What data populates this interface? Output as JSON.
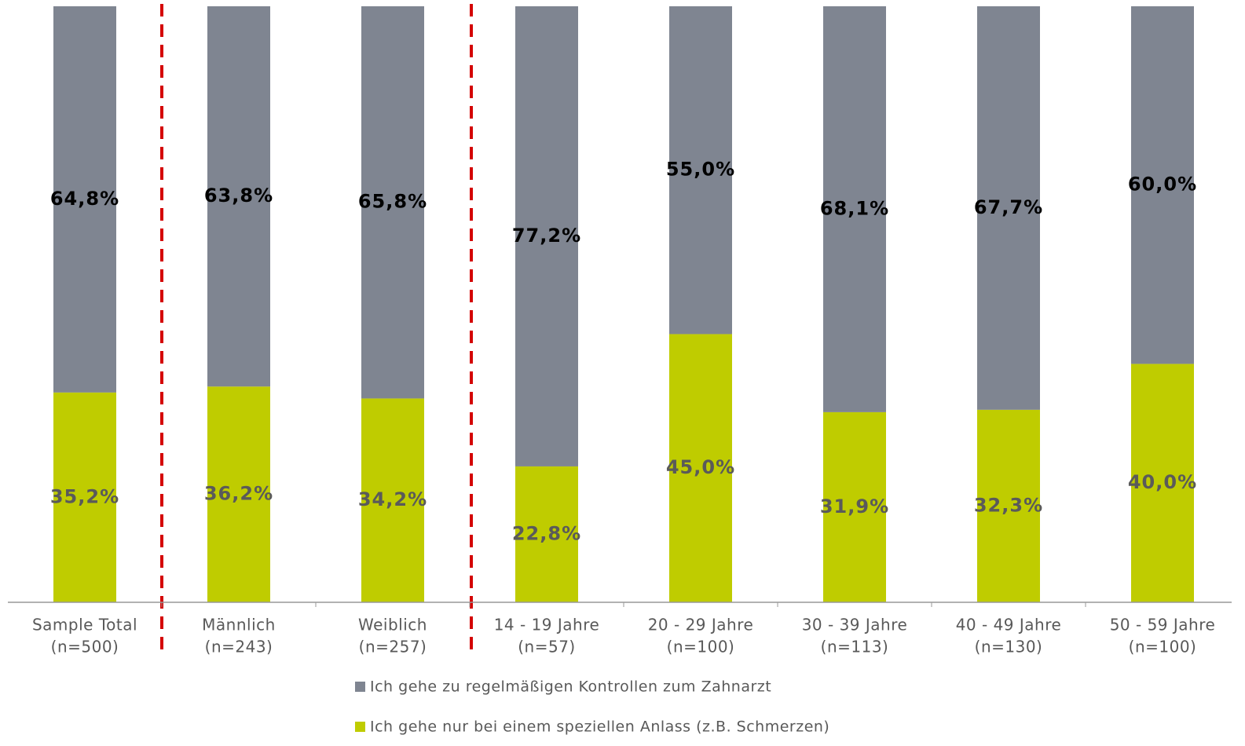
{
  "chart_data": {
    "type": "stacked_bar",
    "categories": [
      [
        "Sample Total",
        "(n=500)"
      ],
      [
        "Männlich",
        "(n=243)"
      ],
      [
        "Weiblich",
        "(n=257)"
      ],
      [
        "14 - 19 Jahre",
        "(n=57)"
      ],
      [
        "20 - 29 Jahre",
        "(n=100)"
      ],
      [
        "30 - 39 Jahre",
        "(n=113)"
      ],
      [
        "40 - 49 Jahre",
        "(n=130)"
      ],
      [
        "50 - 59 Jahre",
        "(n=100)"
      ]
    ],
    "series": [
      {
        "name": "Ich gehe nur bei einem speziellen Anlass (z.B. Schmerzen)",
        "color": "#bfcc00",
        "label_color": "#5a5a5a",
        "values": [
          35.2,
          36.2,
          34.2,
          22.8,
          45.0,
          31.9,
          32.3,
          40.0
        ],
        "value_labels": [
          "35,2%",
          "36,2%",
          "34,2%",
          "22,8%",
          "45,0%",
          "31,9%",
          "32,3%",
          "40,0%"
        ]
      },
      {
        "name": "Ich gehe zu regelmäßigen Kontrollen zum Zahnarzt",
        "color": "#7f8591",
        "label_color": "#000000",
        "values": [
          64.8,
          63.8,
          65.8,
          77.2,
          55.0,
          68.1,
          67.7,
          60.0
        ],
        "value_labels": [
          "64,8%",
          "63,8%",
          "65,8%",
          "77,2%",
          "55,0%",
          "68,1%",
          "67,7%",
          "60,0%"
        ]
      }
    ],
    "ylim": [
      0,
      100
    ],
    "legend_order": [
      1,
      0
    ]
  }
}
